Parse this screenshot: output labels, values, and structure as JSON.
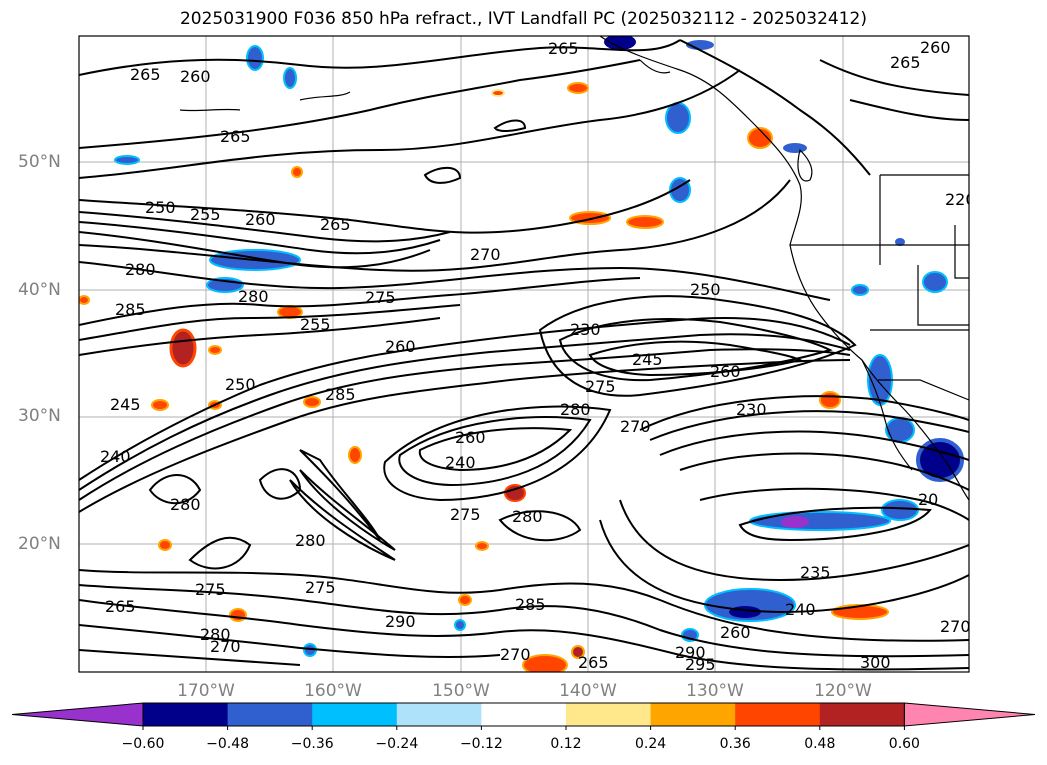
{
  "title": "2025031900 F036 850 hPa refract., IVT Landfall PC (2025032112 - 2025032412)",
  "latitudes": [
    "50°N",
    "40°N",
    "30°N",
    "20°N"
  ],
  "longitudes": [
    "170°W",
    "160°W",
    "150°W",
    "140°W",
    "130°W",
    "120°W"
  ],
  "contour_labels": [
    "265",
    "260",
    "265",
    "260",
    "265",
    "250",
    "255",
    "260",
    "265",
    "270",
    "280",
    "285",
    "280",
    "275",
    "255",
    "250",
    "260",
    "245",
    "250",
    "285",
    "280",
    "275",
    "240",
    "260",
    "240",
    "270",
    "275",
    "280",
    "275",
    "280",
    "290",
    "280",
    "235",
    "240",
    "260",
    "270",
    "265",
    "285",
    "290",
    "295",
    "300",
    "270",
    "265",
    "230",
    "245",
    "260",
    "265",
    "275",
    "280",
    "270",
    "230",
    "20",
    "220"
  ],
  "colorbar": {
    "ticks": [
      "−0.60",
      "−0.48",
      "−0.36",
      "−0.24",
      "−0.12",
      "0.12",
      "0.24",
      "0.36",
      "0.48",
      "0.60"
    ],
    "colors": [
      "#9932cc",
      "#00008b",
      "#3060d0",
      "#00bfff",
      "#aee2fa",
      "#ffffff",
      "#ffe88c",
      "#ffa500",
      "#ff4500",
      "#b22222",
      "#ff85b0"
    ]
  }
}
